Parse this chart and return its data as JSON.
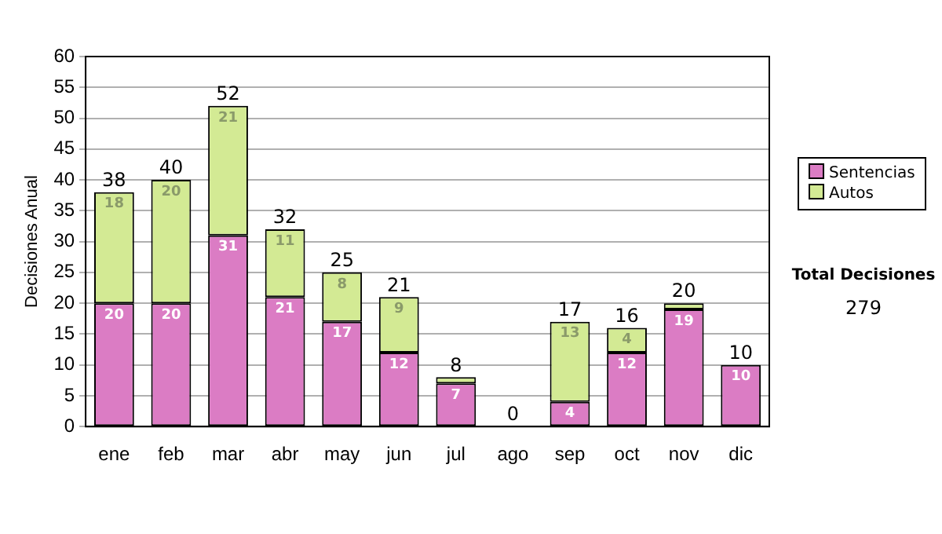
{
  "chart_data": {
    "type": "bar",
    "stacked": true,
    "ylabel": "Decisiones Anual",
    "categories": [
      "ene",
      "feb",
      "mar",
      "abr",
      "may",
      "jun",
      "jul",
      "ago",
      "sep",
      "oct",
      "nov",
      "dic"
    ],
    "series": [
      {
        "name": "Sentencias",
        "color": "#db7cc4",
        "values": [
          20,
          20,
          31,
          21,
          17,
          12,
          7,
          0,
          4,
          12,
          19,
          10
        ],
        "value_labels": [
          "20",
          "20",
          "31",
          "21",
          "17",
          "12",
          "7",
          null,
          "4",
          "12",
          "19",
          "10"
        ]
      },
      {
        "name": "Autos",
        "color": "#d3ea94",
        "values": [
          18,
          20,
          21,
          11,
          8,
          9,
          1,
          0,
          13,
          4,
          1,
          0
        ],
        "value_labels": [
          "18",
          "20",
          "21",
          "11",
          "8",
          "9",
          null,
          null,
          "13",
          "4",
          null,
          null
        ]
      }
    ],
    "totals": [
      "38",
      "40",
      "52",
      "32",
      "25",
      "21",
      "8",
      "0",
      "17",
      "16",
      "20",
      "10"
    ],
    "ylim": [
      0,
      60
    ],
    "yticks": [
      0,
      5,
      10,
      15,
      20,
      25,
      30,
      35,
      40,
      45,
      50,
      55,
      60
    ],
    "grid": "y",
    "legend": "right",
    "annotations": [
      "Total Decisiones",
      "279"
    ]
  }
}
